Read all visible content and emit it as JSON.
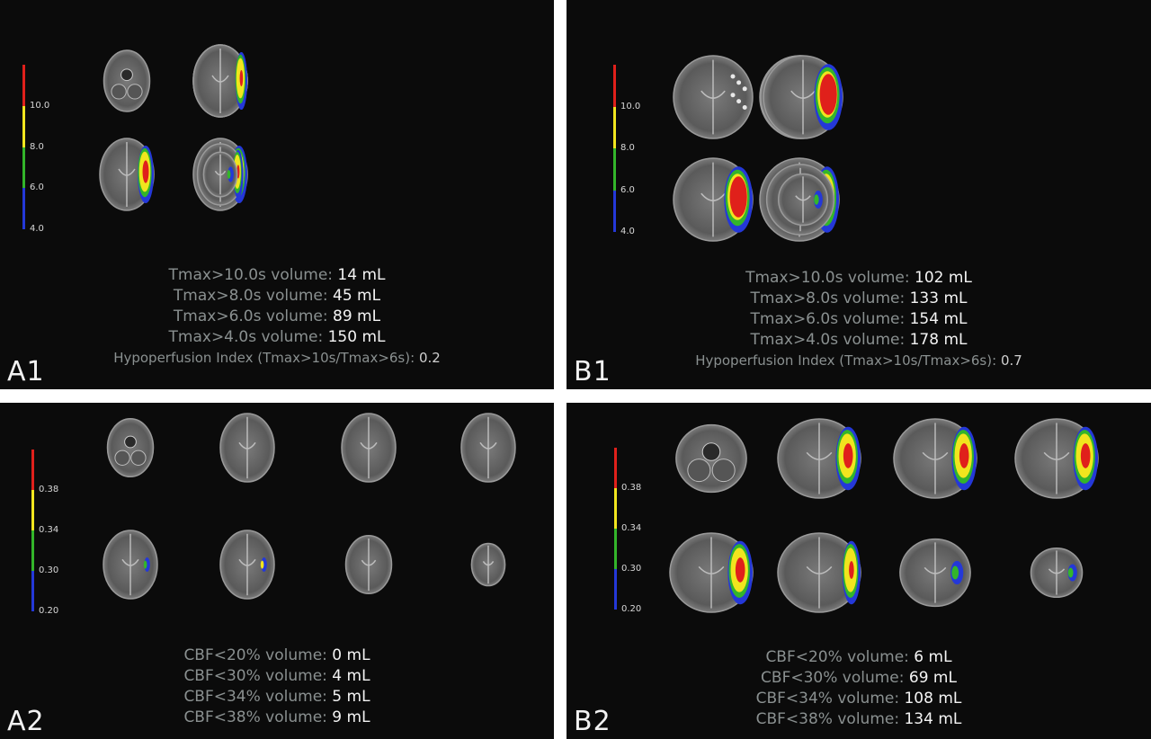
{
  "panels": {
    "A1": {
      "label": "A1",
      "colorbar": {
        "ticks": [
          "10.0",
          "8.0",
          "6.0",
          "4.0"
        ],
        "colors": [
          "#e0201b",
          "#f1e51e",
          "#33b52a",
          "#2438d8"
        ]
      },
      "slices": [
        {
          "row": 0,
          "shape": "cerebellum",
          "lesion": "none"
        },
        {
          "row": 0,
          "shape": "axial",
          "lesion": "small"
        },
        {
          "row": 0,
          "shape": "axial",
          "lesion": "medium"
        },
        {
          "row": 0,
          "shape": "axial",
          "lesion": "medium"
        },
        {
          "row": 1,
          "shape": "axial",
          "lesion": "large"
        },
        {
          "row": 1,
          "shape": "axial",
          "lesion": "large"
        },
        {
          "row": 1,
          "shape": "axial",
          "lesion": "medium"
        },
        {
          "row": 1,
          "shape": "vertex",
          "lesion": "small"
        }
      ],
      "stats": [
        {
          "label": "Tmax>10.0s volume: ",
          "value": "14 mL"
        },
        {
          "label": "Tmax>8.0s volume: ",
          "value": "45 mL"
        },
        {
          "label": "Tmax>6.0s volume: ",
          "value": "89 mL"
        },
        {
          "label": "Tmax>4.0s volume: ",
          "value": "150 mL"
        }
      ],
      "index": {
        "label": "Hypoperfusion Index (Tmax>10s/Tmax>6s): ",
        "value": "0.2"
      }
    },
    "B1": {
      "label": "B1",
      "colorbar": {
        "ticks": [
          "10.0",
          "8.0",
          "6.0",
          "4.0"
        ],
        "colors": [
          "#e0201b",
          "#f1e51e",
          "#33b52a",
          "#2438d8"
        ]
      },
      "slices": [
        {
          "row": 0,
          "shape": "axial",
          "lesion": "speckle"
        },
        {
          "row": 0,
          "shape": "axial",
          "lesion": "large"
        },
        {
          "row": 0,
          "shape": "axial",
          "lesion": "huge"
        },
        {
          "row": 0,
          "shape": "axial",
          "lesion": "huge"
        },
        {
          "row": 1,
          "shape": "axial",
          "lesion": "huge"
        },
        {
          "row": 1,
          "shape": "axial",
          "lesion": "large"
        },
        {
          "row": 1,
          "shape": "axial",
          "lesion": "small"
        },
        {
          "row": 1,
          "shape": "vertex",
          "lesion": "small"
        }
      ],
      "stats": [
        {
          "label": "Tmax>10.0s volume: ",
          "value": "102 mL"
        },
        {
          "label": "Tmax>8.0s volume: ",
          "value": "133 mL"
        },
        {
          "label": "Tmax>6.0s volume: ",
          "value": "154 mL"
        },
        {
          "label": "Tmax>4.0s volume: ",
          "value": "178 mL"
        }
      ],
      "index": {
        "label": "Hypoperfusion Index (Tmax>10s/Tmax>6s): ",
        "value": "0.7"
      }
    },
    "A2": {
      "label": "A2",
      "colorbar": {
        "ticks": [
          "0.38",
          "0.34",
          "0.30",
          "0.20"
        ],
        "colors": [
          "#e0201b",
          "#f1e51e",
          "#33b52a",
          "#2438d8"
        ]
      },
      "slices": [
        {
          "row": 0,
          "shape": "cerebellum",
          "lesion": "none"
        },
        {
          "row": 0,
          "shape": "axial",
          "lesion": "none"
        },
        {
          "row": 0,
          "shape": "axial",
          "lesion": "none"
        },
        {
          "row": 0,
          "shape": "axial",
          "lesion": "none"
        },
        {
          "row": 1,
          "shape": "axial",
          "lesion": "tiny"
        },
        {
          "row": 1,
          "shape": "axial",
          "lesion": "tinyyellow"
        },
        {
          "row": 1,
          "shape": "axial",
          "lesion": "none"
        },
        {
          "row": 1,
          "shape": "vertex",
          "lesion": "none"
        }
      ],
      "stats": [
        {
          "label": "CBF<20% volume: ",
          "value": "0 mL"
        },
        {
          "label": "CBF<30% volume: ",
          "value": "4 mL"
        },
        {
          "label": "CBF<34% volume: ",
          "value": "5 mL"
        },
        {
          "label": "CBF<38% volume: ",
          "value": "9 mL"
        }
      ]
    },
    "B2": {
      "label": "B2",
      "colorbar": {
        "ticks": [
          "0.38",
          "0.34",
          "0.30",
          "0.20"
        ],
        "colors": [
          "#e0201b",
          "#f1e51e",
          "#33b52a",
          "#2438d8"
        ]
      },
      "slices": [
        {
          "row": 0,
          "shape": "cerebellum",
          "lesion": "none"
        },
        {
          "row": 0,
          "shape": "axial",
          "lesion": "large"
        },
        {
          "row": 0,
          "shape": "axial",
          "lesion": "large"
        },
        {
          "row": 0,
          "shape": "axial",
          "lesion": "large"
        },
        {
          "row": 1,
          "shape": "axial",
          "lesion": "large"
        },
        {
          "row": 1,
          "shape": "axial",
          "lesion": "medium"
        },
        {
          "row": 1,
          "shape": "axial",
          "lesion": "small"
        },
        {
          "row": 1,
          "shape": "vertex",
          "lesion": "small"
        }
      ],
      "stats": [
        {
          "label": "CBF<20% volume: ",
          "value": "6 mL"
        },
        {
          "label": "CBF<30% volume: ",
          "value": "69 mL"
        },
        {
          "label": "CBF<34% volume: ",
          "value": "108 mL"
        },
        {
          "label": "CBF<38% volume: ",
          "value": "134 mL"
        }
      ]
    }
  }
}
